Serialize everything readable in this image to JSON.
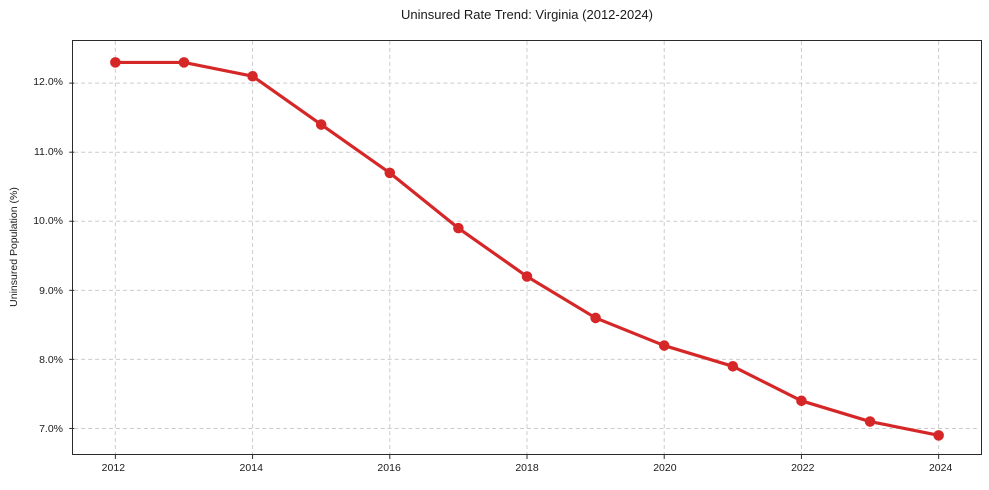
{
  "chart_data": {
    "type": "line",
    "title": "Uninsured Rate Trend: Virginia (2012-2024)",
    "xlabel": "",
    "ylabel": "Uninsured Population (%)",
    "x": [
      2012,
      2013,
      2014,
      2015,
      2016,
      2017,
      2018,
      2019,
      2020,
      2021,
      2022,
      2023,
      2024
    ],
    "values": [
      12.3,
      12.3,
      12.1,
      11.4,
      10.7,
      9.9,
      9.2,
      8.6,
      8.2,
      7.9,
      7.4,
      7.1,
      6.9
    ],
    "xlim": [
      2011.4,
      2024.6
    ],
    "ylim": [
      6.63,
      12.61
    ],
    "xticks": [
      {
        "value": 2012,
        "label": "2012"
      },
      {
        "value": 2014,
        "label": "2014"
      },
      {
        "value": 2016,
        "label": "2016"
      },
      {
        "value": 2018,
        "label": "2018"
      },
      {
        "value": 2020,
        "label": "2020"
      },
      {
        "value": 2022,
        "label": "2022"
      },
      {
        "value": 2024,
        "label": "2024"
      }
    ],
    "yticks": [
      {
        "value": 7.0,
        "label": "7.0%"
      },
      {
        "value": 8.0,
        "label": "8.0%"
      },
      {
        "value": 9.0,
        "label": "9.0%"
      },
      {
        "value": 10.0,
        "label": "10.0%"
      },
      {
        "value": 11.0,
        "label": "11.0%"
      },
      {
        "value": 12.0,
        "label": "12.0%"
      }
    ],
    "grid": {
      "visible": true,
      "style": "dashed",
      "axes": "both"
    },
    "legend": "none",
    "marker": "circle",
    "line_width": 3.2,
    "marker_radius": 5.3,
    "colors": {
      "line": "#d62728",
      "grid": "#cccccc",
      "spine": "#2b2b2b",
      "text": "#1a1a1a",
      "background": "#ffffff"
    }
  }
}
